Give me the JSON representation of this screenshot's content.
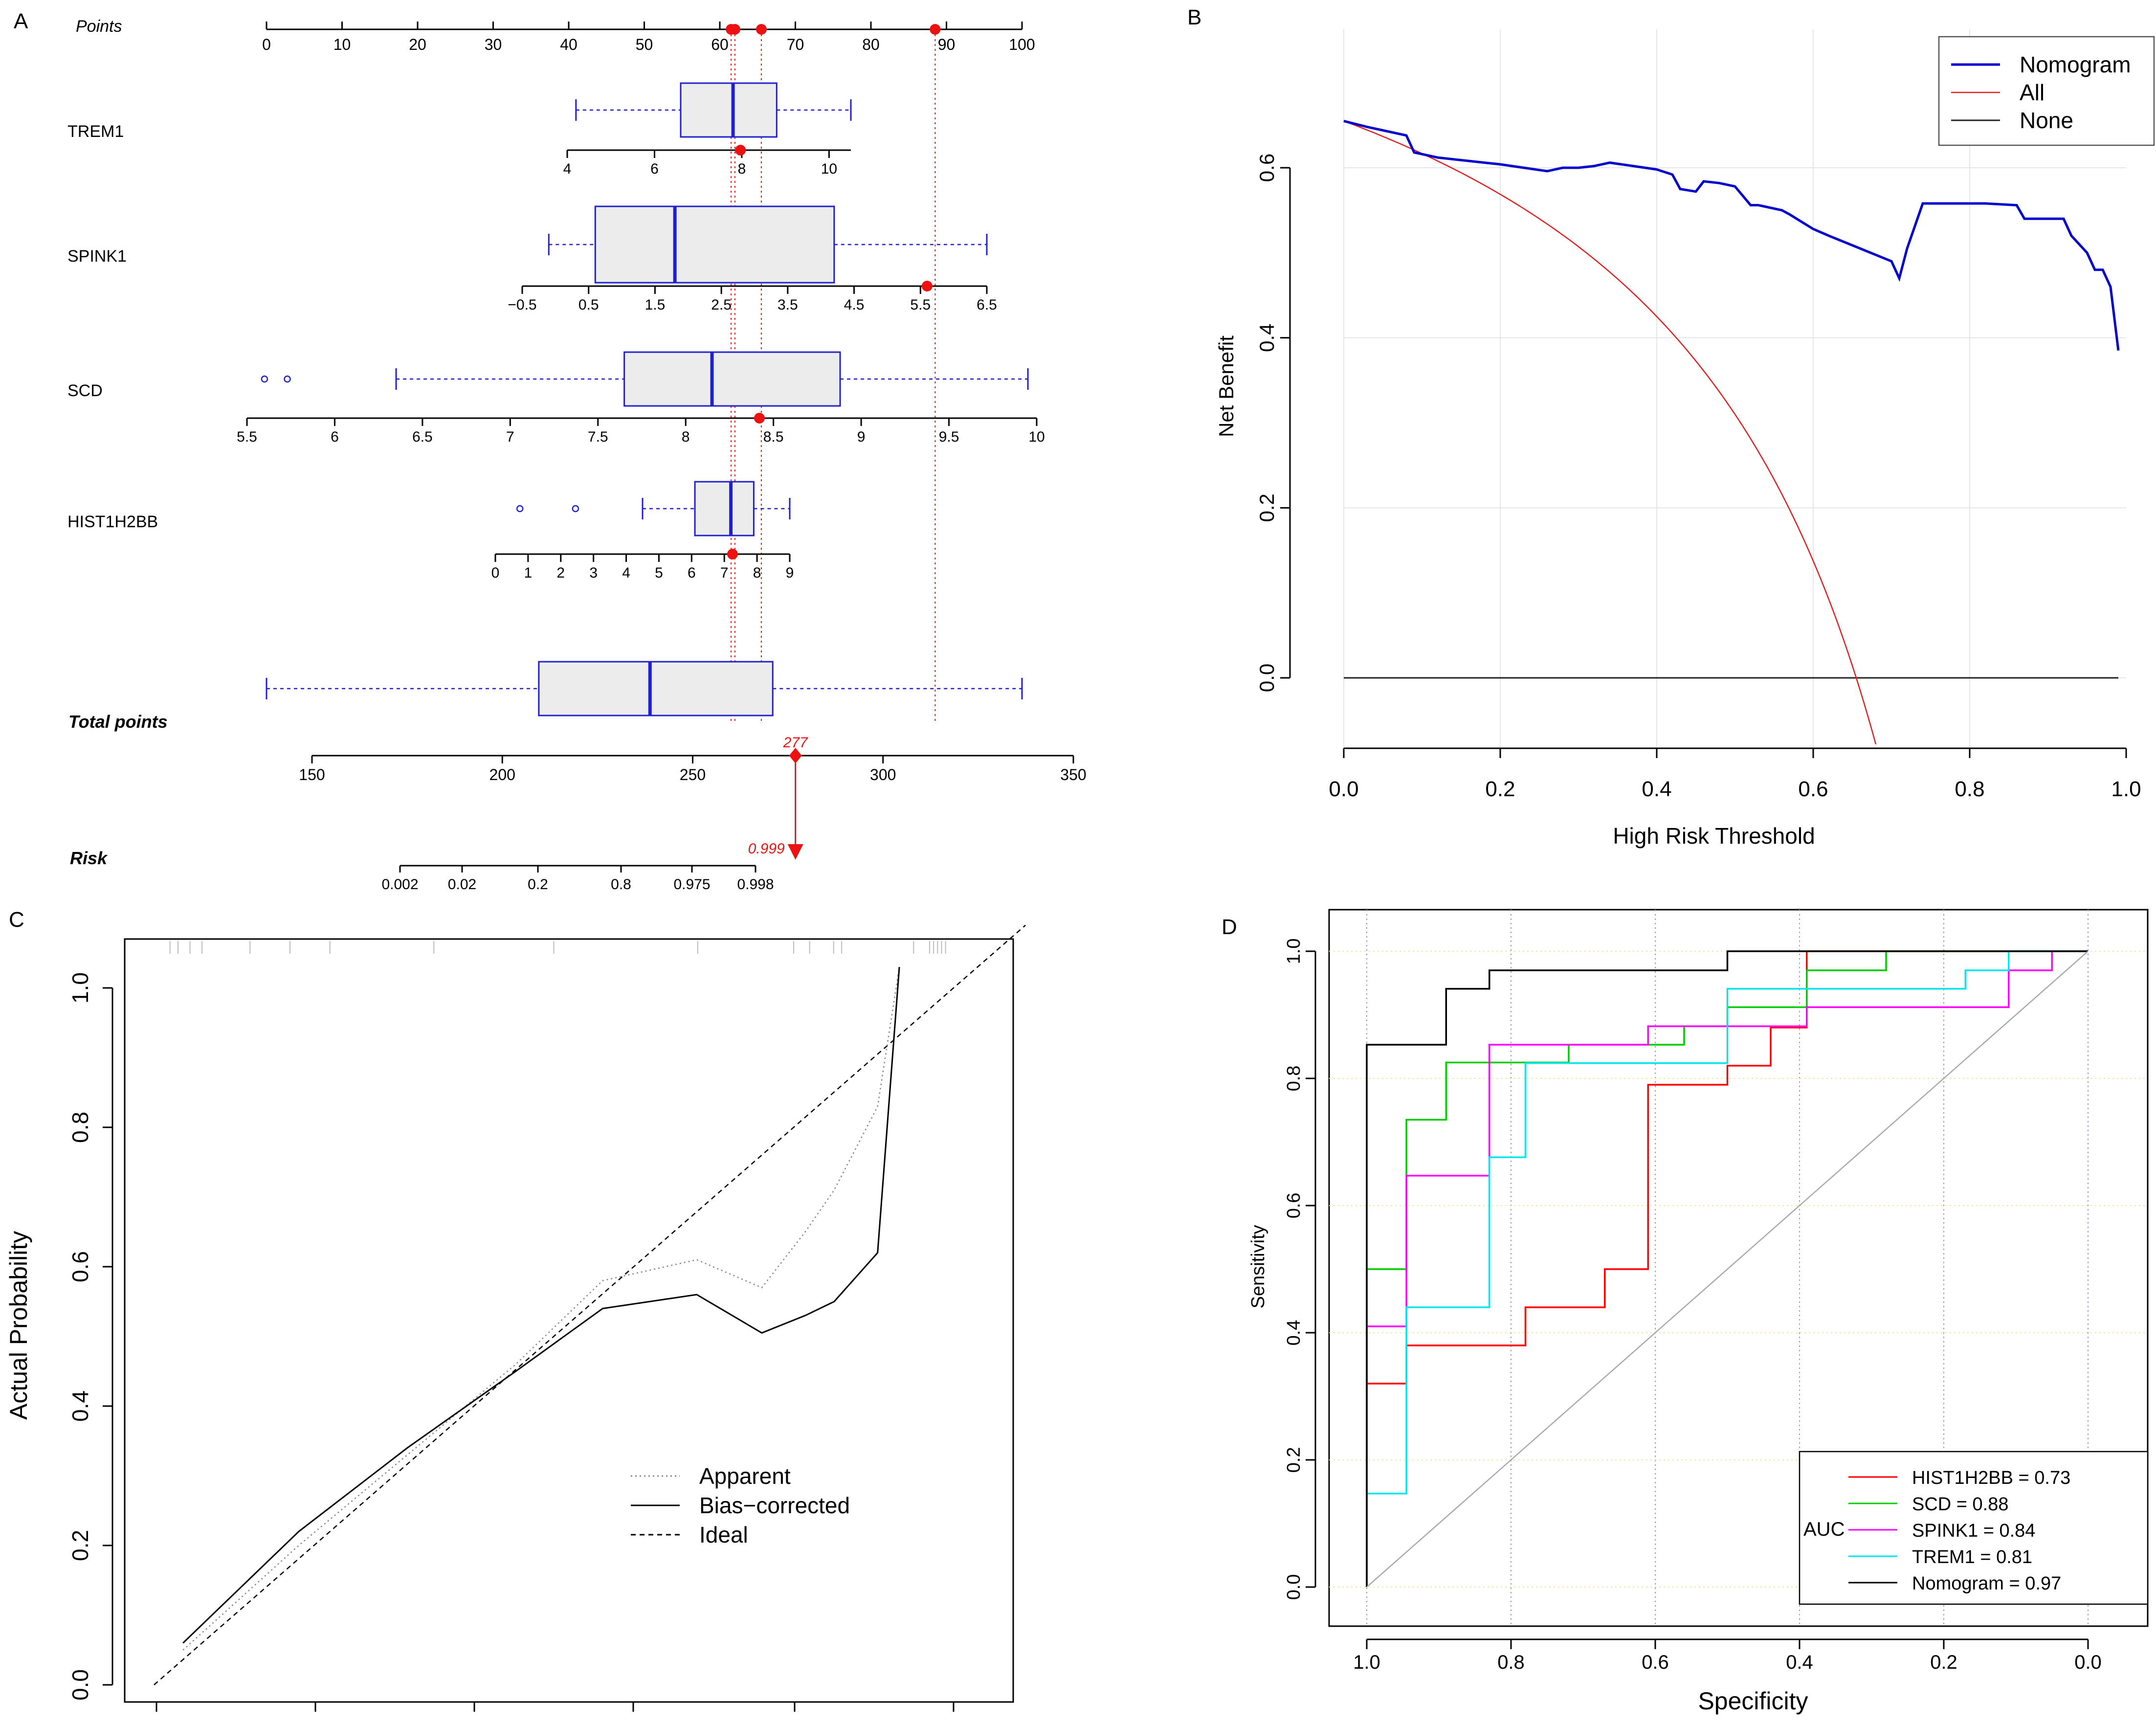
{
  "panels": {
    "a": "A",
    "b": "B",
    "c": "C",
    "d": "D"
  },
  "chart_data": [
    {
      "panel": "A",
      "type": "nomogram",
      "points_axis": {
        "label": "Points",
        "ticks": [
          0,
          10,
          20,
          30,
          40,
          50,
          60,
          70,
          80,
          90,
          100
        ]
      },
      "selected_points": [
        61.5,
        62.0,
        65.5,
        88.5
      ],
      "variables": [
        {
          "name": "TREM1",
          "axis_min": 4,
          "axis_max": 10.5,
          "ticks": [
            "4",
            "6",
            "8",
            "10"
          ],
          "tick_values": [
            4,
            6,
            8,
            10
          ],
          "box": {
            "whisker_low": 4.2,
            "q1": 6.6,
            "median": 7.8,
            "q3": 8.8,
            "whisker_high": 10.5,
            "outliers": []
          },
          "selected": 7.97,
          "points_at_selected": 61.5
        },
        {
          "name": "SPINK1",
          "axis_min": -0.5,
          "axis_max": 6.5,
          "ticks": [
            "−0.5",
            "0.5",
            "1.5",
            "2.5",
            "3.5",
            "4.5",
            "5.5",
            "6.5"
          ],
          "tick_values": [
            -0.5,
            0.5,
            1.5,
            2.5,
            3.5,
            4.5,
            5.5,
            6.5
          ],
          "box": {
            "whisker_low": -0.1,
            "q1": 0.6,
            "median": 1.8,
            "q3": 4.2,
            "whisker_high": 6.5,
            "outliers": []
          },
          "selected": 5.6,
          "points_at_selected": 88.5
        },
        {
          "name": "SCD",
          "axis_min": 5.5,
          "axis_max": 10,
          "ticks": [
            "5.5",
            "6",
            "6.5",
            "7",
            "7.5",
            "8",
            "8.5",
            "9",
            "9.5",
            "10"
          ],
          "tick_values": [
            5.5,
            6,
            6.5,
            7,
            7.5,
            8,
            8.5,
            9,
            9.5,
            10
          ],
          "box": {
            "whisker_low": 6.35,
            "q1": 7.65,
            "median": 8.15,
            "q3": 8.88,
            "whisker_high": 9.95,
            "outliers": [
              5.6,
              5.73
            ]
          },
          "selected": 8.42,
          "points_at_selected": 65.5
        },
        {
          "name": "HIST1H2BB",
          "axis_min": 0,
          "axis_max": 9,
          "ticks": [
            "0",
            "1",
            "2",
            "3",
            "4",
            "5",
            "6",
            "7",
            "8",
            "9"
          ],
          "tick_values": [
            0,
            1,
            2,
            3,
            4,
            5,
            6,
            7,
            8,
            9
          ],
          "box": {
            "whisker_low": 4.5,
            "q1": 6.1,
            "median": 7.2,
            "q3": 7.9,
            "whisker_high": 9.0,
            "outliers": [
              0.75,
              2.45
            ]
          },
          "selected": 7.25,
          "points_at_selected": 62.0
        }
      ],
      "total_points": {
        "label": "Total points",
        "ticks": [
          "150",
          "200",
          "250",
          "300",
          "350"
        ],
        "tick_values": [
          150,
          200,
          250,
          300,
          350
        ],
        "box": {
          "whisker_low": 140,
          "q1": 211,
          "median": 240,
          "q3": 272,
          "whisker_high": 337
        },
        "value": 277,
        "value_label": "277"
      },
      "risk": {
        "label": "Risk",
        "ticks": [
          "0.002",
          "0.02",
          "0.2",
          "0.8",
          "0.975",
          "0.998"
        ],
        "value_label": "0.999"
      }
    },
    {
      "panel": "B",
      "type": "line",
      "title": "",
      "xlabel": "High Risk Threshold",
      "ylabel": "Net Benefit",
      "xlim": [
        0,
        1
      ],
      "ylim": [
        -0.08,
        0.7
      ],
      "x_ticks": [
        "0.0",
        "0.2",
        "0.4",
        "0.6",
        "0.8",
        "1.0"
      ],
      "y_ticks": [
        "0.0",
        "0.2",
        "0.4",
        "0.6"
      ],
      "legend": [
        "Nomogram",
        "All",
        "None"
      ],
      "legend_position": "top-right",
      "series": [
        {
          "name": "Nomogram",
          "color": "#0000cc",
          "x": [
            0.0,
            0.03,
            0.05,
            0.08,
            0.09,
            0.12,
            0.16,
            0.18,
            0.2,
            0.23,
            0.26,
            0.28,
            0.3,
            0.32,
            0.34,
            0.37,
            0.4,
            0.42,
            0.43,
            0.45,
            0.46,
            0.48,
            0.5,
            0.52,
            0.53,
            0.56,
            0.57,
            0.6,
            0.62,
            0.66,
            0.7,
            0.71,
            0.72,
            0.74,
            0.78,
            0.82,
            0.86,
            0.87,
            0.9,
            0.92,
            0.93,
            0.95,
            0.96,
            0.97,
            0.98,
            0.99
          ],
          "y": [
            0.655,
            0.648,
            0.644,
            0.638,
            0.618,
            0.612,
            0.608,
            0.606,
            0.604,
            0.6,
            0.596,
            0.6,
            0.6,
            0.602,
            0.606,
            0.602,
            0.598,
            0.592,
            0.575,
            0.572,
            0.584,
            0.582,
            0.578,
            0.556,
            0.556,
            0.55,
            0.545,
            0.528,
            0.52,
            0.505,
            0.49,
            0.47,
            0.505,
            0.558,
            0.558,
            0.558,
            0.556,
            0.54,
            0.54,
            0.54,
            0.52,
            0.5,
            0.48,
            0.48,
            0.46,
            0.385
          ]
        },
        {
          "name": "All",
          "color": "#e02020",
          "formula": "prevalence 0.655 treat-all curve"
        },
        {
          "name": "None",
          "color": "#000000",
          "x": [
            0,
            0.99
          ],
          "y": [
            0,
            0
          ]
        }
      ]
    },
    {
      "panel": "C",
      "type": "line",
      "xlabel": "",
      "ylabel": "Actual Probability",
      "ylim": [
        0,
        1.05
      ],
      "y_ticks": [
        "0.0",
        "0.2",
        "0.4",
        "0.6",
        "0.8",
        "1.0"
      ],
      "legend": [
        "Apparent",
        "Bias−corrected",
        "Ideal"
      ],
      "series": [
        {
          "name": "Apparent",
          "style": "dotted",
          "color": "#888888",
          "x": [
            0.04,
            0.2,
            0.35,
            0.5,
            0.62,
            0.75,
            0.84,
            0.9,
            0.94,
            1.0,
            1.03
          ],
          "y": [
            0.05,
            0.2,
            0.33,
            0.46,
            0.58,
            0.61,
            0.57,
            0.65,
            0.71,
            0.83,
            1.03
          ]
        },
        {
          "name": "Bias-corrected",
          "style": "solid",
          "color": "#000000",
          "x": [
            0.04,
            0.2,
            0.35,
            0.5,
            0.62,
            0.75,
            0.84,
            0.9,
            0.94,
            1.0,
            1.03
          ],
          "y": [
            0.06,
            0.22,
            0.34,
            0.45,
            0.54,
            0.56,
            0.505,
            0.53,
            0.55,
            0.62,
            1.03
          ]
        },
        {
          "name": "Ideal",
          "style": "dashed",
          "color": "#000000",
          "x": [
            0,
            1.1
          ],
          "y": [
            0,
            1.1
          ]
        }
      ]
    },
    {
      "panel": "D",
      "type": "line",
      "xlabel": "Specificity",
      "ylabel": "Sensitivity",
      "xlim": [
        1.0,
        0.0
      ],
      "ylim": [
        0,
        1
      ],
      "x_ticks": [
        "1.0",
        "0.8",
        "0.6",
        "0.4",
        "0.2",
        "0.0"
      ],
      "y_ticks": [
        "0.0",
        "0.2",
        "0.4",
        "0.6",
        "0.8",
        "1.0"
      ],
      "legend_title": "AUC",
      "legend": [
        "HIST1H2BB = 0.73",
        "SCD = 0.88",
        "SPINK1 = 0.84",
        "TREM1 = 0.81",
        "Nomogram = 0.97"
      ],
      "series": [
        {
          "name": "HIST1H2BB",
          "auc": 0.73,
          "color": "#ff0000",
          "spec": [
            1.0,
            1.0,
            0.945,
            0.945,
            0.78,
            0.78,
            0.67,
            0.67,
            0.61,
            0.61,
            0.5,
            0.5,
            0.44,
            0.44,
            0.39,
            0.39,
            0.0
          ],
          "sens": [
            0.0,
            0.32,
            0.32,
            0.38,
            0.38,
            0.44,
            0.44,
            0.5,
            0.5,
            0.79,
            0.79,
            0.82,
            0.82,
            0.88,
            0.88,
            1.0,
            1.0
          ]
        },
        {
          "name": "SCD",
          "auc": 0.88,
          "color": "#00cc00",
          "spec": [
            1.0,
            1.0,
            0.945,
            0.945,
            0.89,
            0.89,
            0.72,
            0.72,
            0.56,
            0.56,
            0.5,
            0.5,
            0.39,
            0.39,
            0.28,
            0.28,
            0.0
          ],
          "sens": [
            0.0,
            0.5,
            0.5,
            0.735,
            0.735,
            0.825,
            0.825,
            0.853,
            0.853,
            0.882,
            0.882,
            0.912,
            0.912,
            0.97,
            0.97,
            1.0,
            1.0
          ]
        },
        {
          "name": "SPINK1",
          "auc": 0.84,
          "color": "#ff00ff",
          "spec": [
            1.0,
            1.0,
            0.945,
            0.945,
            0.83,
            0.83,
            0.61,
            0.61,
            0.5,
            0.5,
            0.39,
            0.39,
            0.11,
            0.11,
            0.05,
            0.05,
            0.0
          ],
          "sens": [
            0.0,
            0.41,
            0.41,
            0.647,
            0.647,
            0.853,
            0.853,
            0.882,
            0.882,
            0.882,
            0.882,
            0.912,
            0.912,
            0.97,
            0.97,
            1.0,
            1.0
          ]
        },
        {
          "name": "TREM1",
          "auc": 0.81,
          "color": "#00e5ee",
          "spec": [
            1.0,
            1.0,
            0.945,
            0.945,
            0.83,
            0.83,
            0.78,
            0.78,
            0.5,
            0.5,
            0.17,
            0.17,
            0.11,
            0.11,
            0.0
          ],
          "sens": [
            0.0,
            0.147,
            0.147,
            0.44,
            0.44,
            0.676,
            0.676,
            0.824,
            0.824,
            0.941,
            0.941,
            0.97,
            0.97,
            1.0,
            1.0
          ]
        },
        {
          "name": "Nomogram",
          "auc": 0.97,
          "color": "#000000",
          "spec": [
            1.0,
            1.0,
            0.89,
            0.89,
            0.83,
            0.83,
            0.78,
            0.78,
            0.5,
            0.5,
            0.0
          ],
          "sens": [
            0.0,
            0.853,
            0.853,
            0.941,
            0.941,
            0.97,
            0.97,
            0.97,
            0.97,
            1.0,
            1.0
          ]
        },
        {
          "name": "reference",
          "color": "#aaaaaa",
          "spec": [
            1.0,
            0.0
          ],
          "sens": [
            0.0,
            1.0
          ]
        }
      ]
    }
  ]
}
